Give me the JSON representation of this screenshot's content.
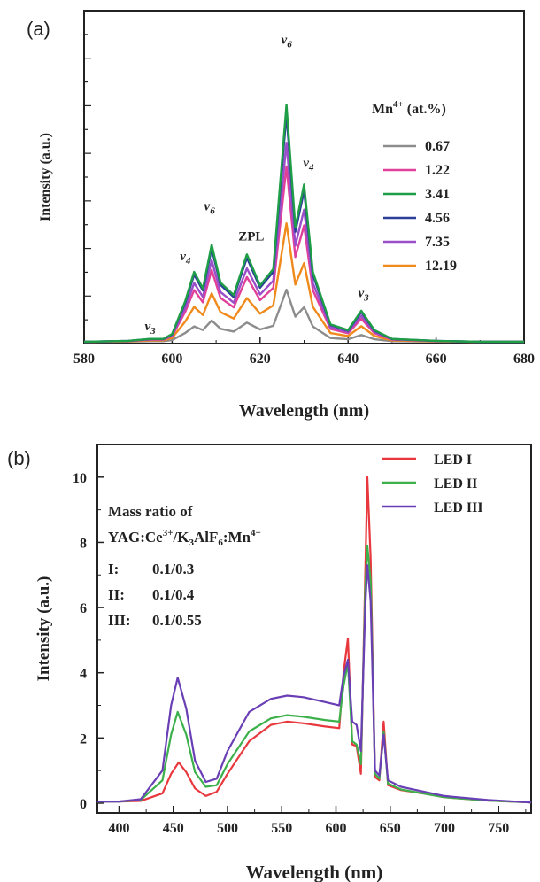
{
  "panels": {
    "a_label": "(a)",
    "b_label": "(b)"
  },
  "chart_data": [
    {
      "type": "line",
      "title": "",
      "xlabel": "Wavelength (nm)",
      "ylabel": "Intensity (a.u.)",
      "xlim": [
        580,
        680
      ],
      "ylim": [
        0,
        10
      ],
      "x_ticks": [
        580,
        600,
        620,
        640,
        660,
        680
      ],
      "grid": false,
      "y_tick_labels_shown": false,
      "legend": {
        "title": "Mn",
        "title_sup": "4+",
        "title_suffix": " (at.%)",
        "position": "right"
      },
      "series": [
        {
          "name": "0.67",
          "color": "#8c8c8c",
          "scale": 0.22
        },
        {
          "name": "1.22",
          "color": "#e0409a",
          "scale": 0.74
        },
        {
          "name": "3.41",
          "color": "#1f9e48",
          "scale": 1.0
        },
        {
          "name": "4.56",
          "color": "#2b3f98",
          "scale": 0.96
        },
        {
          "name": "7.35",
          "color": "#9a4fc9",
          "scale": 0.84
        },
        {
          "name": "12.19",
          "color": "#f08a1c",
          "scale": 0.5
        }
      ],
      "shape_x": [
        580,
        590,
        595,
        598,
        600,
        603,
        605,
        607,
        609,
        611,
        614,
        617,
        620,
        623,
        626,
        628,
        630,
        632,
        636,
        640,
        643,
        646,
        650,
        660,
        670,
        680
      ],
      "shape_y": [
        0.0,
        0.01,
        0.03,
        0.03,
        0.08,
        0.42,
        0.72,
        0.55,
        1.0,
        0.61,
        0.48,
        0.9,
        0.58,
        0.75,
        2.44,
        1.18,
        1.62,
        0.72,
        0.18,
        0.12,
        0.32,
        0.12,
        0.03,
        0.01,
        0.0,
        0.0
      ],
      "y_max_visual": 3.3,
      "annotations": [
        {
          "text": "v",
          "sub": "3",
          "x": 595,
          "y_frac": 0.04
        },
        {
          "text": "v",
          "sub": "4",
          "x": 603,
          "y_frac": 0.25
        },
        {
          "text": "v",
          "sub": "6",
          "x": 608.5,
          "y_frac": 0.4
        },
        {
          "text": "ZPL",
          "x": 618,
          "y_frac": 0.31
        },
        {
          "text": "v",
          "sub": "6",
          "x": 626,
          "y_frac": 0.9
        },
        {
          "text": "v",
          "sub": "4",
          "x": 631,
          "y_frac": 0.53
        },
        {
          "text": "v",
          "sub": "3",
          "x": 643.5,
          "y_frac": 0.14
        }
      ]
    },
    {
      "type": "line",
      "title": "",
      "xlabel": "Wavelength (nm)",
      "ylabel": "Intensity (a.u.)",
      "xlim": [
        380,
        780
      ],
      "ylim": [
        -0.3,
        11
      ],
      "x_ticks": [
        400,
        450,
        500,
        550,
        600,
        650,
        700,
        750
      ],
      "y_ticks": [
        0,
        2,
        4,
        6,
        8,
        10
      ],
      "grid": false,
      "legend": {
        "position": "top-right"
      },
      "series": [
        {
          "name": "LED I",
          "color": "#e8383d",
          "x": [
            380,
            400,
            420,
            440,
            448,
            455,
            462,
            470,
            480,
            490,
            500,
            520,
            540,
            555,
            570,
            590,
            603,
            607,
            611,
            615,
            619,
            623,
            627,
            629,
            632,
            636,
            640,
            644,
            648,
            660,
            680,
            700,
            740,
            780
          ],
          "y": [
            0.05,
            0.05,
            0.07,
            0.3,
            0.9,
            1.25,
            0.95,
            0.45,
            0.22,
            0.35,
            0.9,
            1.9,
            2.4,
            2.5,
            2.45,
            2.35,
            2.3,
            4.0,
            5.05,
            1.8,
            1.75,
            0.9,
            7.0,
            10.0,
            7.5,
            0.8,
            0.7,
            2.5,
            0.55,
            0.4,
            0.3,
            0.18,
            0.08,
            0.02
          ]
        },
        {
          "name": "LED II",
          "color": "#3cb04a",
          "x": [
            380,
            400,
            420,
            440,
            448,
            454,
            462,
            470,
            480,
            490,
            500,
            520,
            540,
            555,
            570,
            590,
            603,
            607,
            611,
            615,
            619,
            623,
            627,
            629,
            632,
            636,
            640,
            644,
            648,
            660,
            680,
            700,
            740,
            780
          ],
          "y": [
            0.05,
            0.05,
            0.1,
            0.7,
            2.1,
            2.8,
            2.1,
            0.95,
            0.5,
            0.55,
            1.2,
            2.2,
            2.6,
            2.7,
            2.65,
            2.55,
            2.5,
            3.6,
            4.3,
            1.9,
            1.8,
            1.2,
            6.5,
            7.9,
            6.8,
            0.9,
            0.75,
            2.2,
            0.6,
            0.42,
            0.3,
            0.18,
            0.08,
            0.02
          ]
        },
        {
          "name": "LED III",
          "color": "#6a3fb5",
          "x": [
            380,
            400,
            420,
            440,
            448,
            454,
            462,
            470,
            480,
            490,
            500,
            520,
            540,
            555,
            570,
            590,
            603,
            607,
            611,
            615,
            619,
            623,
            627,
            629,
            632,
            636,
            640,
            644,
            648,
            660,
            680,
            700,
            740,
            780
          ],
          "y": [
            0.05,
            0.05,
            0.12,
            1.0,
            3.0,
            3.85,
            2.9,
            1.3,
            0.65,
            0.75,
            1.6,
            2.8,
            3.2,
            3.3,
            3.25,
            3.1,
            3.0,
            3.9,
            4.4,
            2.5,
            2.4,
            1.6,
            6.0,
            7.3,
            6.2,
            1.0,
            0.85,
            2.1,
            0.7,
            0.5,
            0.36,
            0.22,
            0.1,
            0.02
          ]
        }
      ],
      "mass_ratio_text": {
        "line1": "Mass ratio of",
        "line2": "YAG:Ce3+/K3AlF6:Mn4+",
        "rows": [
          {
            "label": "I:",
            "value": "0.1/0.3"
          },
          {
            "label": "II:",
            "value": "0.1/0.4"
          },
          {
            "label": "III:",
            "value": "0.1/0.55"
          }
        ]
      }
    }
  ]
}
